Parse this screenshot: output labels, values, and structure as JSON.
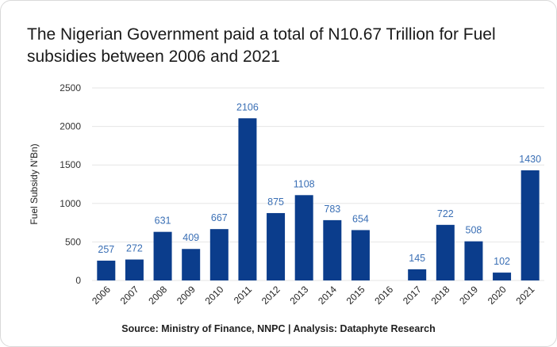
{
  "chart_data": {
    "type": "bar",
    "title": "The Nigerian Government paid a total of N10.67 Trillion for Fuel subsidies between 2006 and 2021",
    "ylabel": "Fuel Subsidy N'Bn)",
    "xlabel": "",
    "categories": [
      "2006",
      "2007",
      "2008",
      "2009",
      "2010",
      "2011",
      "2012",
      "2013",
      "2014",
      "2015",
      "2016",
      "2017",
      "2018",
      "2019",
      "2020",
      "2021"
    ],
    "values": [
      257,
      272,
      631,
      409,
      667,
      2106,
      875,
      1108,
      783,
      654,
      null,
      145,
      722,
      508,
      102,
      1430
    ],
    "data_labels": [
      "257",
      "272",
      "631",
      "409",
      "667",
      "2106",
      "875",
      "1108",
      "783",
      "654",
      "",
      "145",
      "722",
      "508",
      "102",
      "1430"
    ],
    "ylim": [
      0,
      2500
    ],
    "yticks": [
      0,
      500,
      1000,
      1500,
      2000,
      2500
    ],
    "grid": true,
    "colors": {
      "bar": "#0b3d8c",
      "label": "#3a6fb5",
      "grid": "#e6e6e6"
    },
    "source": "Source: Ministry of Finance, NNPC | Analysis: Dataphyte Research"
  }
}
